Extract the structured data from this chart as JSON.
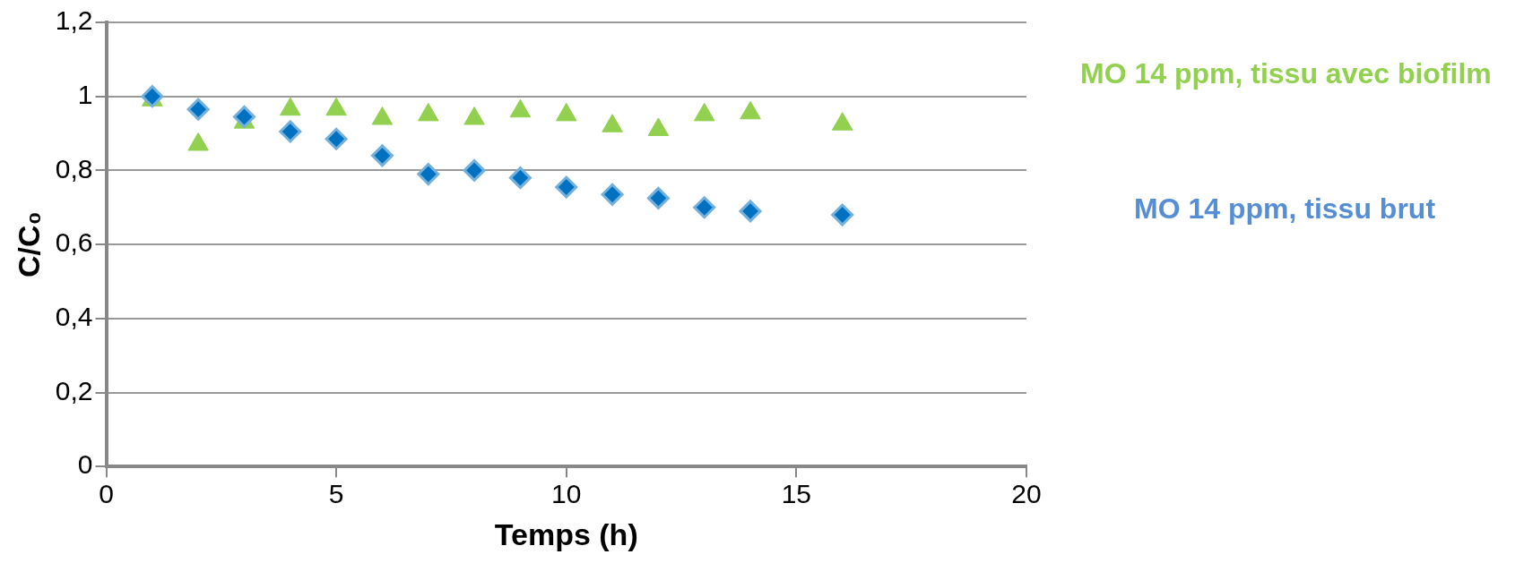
{
  "chart_data": {
    "type": "scatter",
    "xlabel": "Temps (h)",
    "ylabel": "C/C₀",
    "x": [
      1,
      2,
      3,
      4,
      5,
      6,
      7,
      8,
      9,
      10,
      11,
      12,
      13,
      14,
      16
    ],
    "series": [
      {
        "name": "MO 14 ppm, tissu avec biofilm",
        "color": "#92d050",
        "marker": "triangle",
        "values": [
          0.99,
          0.87,
          0.93,
          0.965,
          0.965,
          0.94,
          0.95,
          0.94,
          0.96,
          0.95,
          0.92,
          0.91,
          0.95,
          0.955,
          0.925
        ]
      },
      {
        "name": "MO 14 ppm, tissu brut",
        "color": "#0070c0",
        "marker": "diamond",
        "values": [
          1.0,
          0.965,
          0.945,
          0.905,
          0.885,
          0.84,
          0.79,
          0.8,
          0.78,
          0.755,
          0.735,
          0.725,
          0.7,
          0.69,
          0.68
        ]
      }
    ],
    "xlim": [
      0,
      20
    ],
    "xticks": [
      0,
      5,
      10,
      15,
      20
    ],
    "ylim": [
      0,
      1.2
    ],
    "yticks": [
      0,
      {
        "value": 0.2,
        "label": "0,2"
      },
      {
        "value": 0.4,
        "label": "0,4"
      },
      {
        "value": 0.6,
        "label": "0,6"
      },
      {
        "value": 0.8,
        "label": "0,8"
      },
      1,
      {
        "value": 1.2,
        "label": "1,2"
      }
    ],
    "grid": "y",
    "legend": false
  }
}
